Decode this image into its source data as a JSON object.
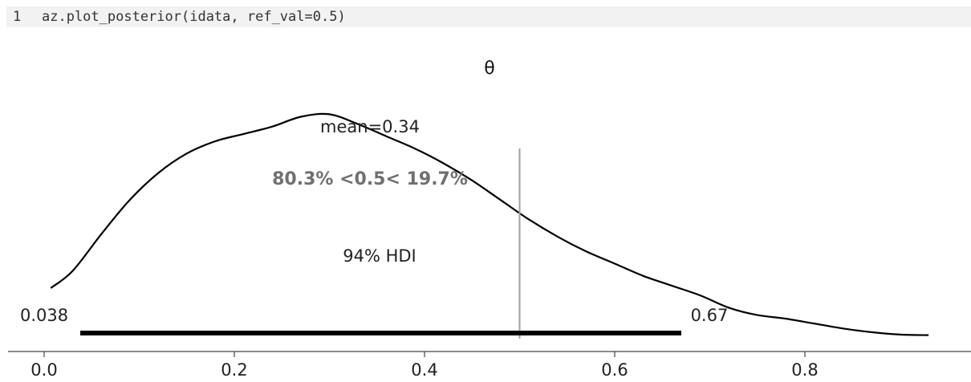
{
  "code_cell": {
    "line_number": "1",
    "code": "az.plot_posterior(idata, ref_val=0.5)"
  },
  "chart_data": {
    "type": "line",
    "title": "θ",
    "xlabel": "",
    "ylabel": "",
    "xlim": [
      -0.05,
      0.98
    ],
    "xticks": [
      0.0,
      0.2,
      0.4,
      0.6,
      0.8
    ],
    "xtick_labels": [
      "0.0",
      "0.2",
      "0.4",
      "0.6",
      "0.8"
    ],
    "grid": false,
    "density_curve": {
      "x": [
        0.007,
        0.03,
        0.06,
        0.09,
        0.12,
        0.15,
        0.18,
        0.21,
        0.24,
        0.27,
        0.3,
        0.33,
        0.36,
        0.39,
        0.42,
        0.45,
        0.48,
        0.51,
        0.54,
        0.57,
        0.6,
        0.63,
        0.66,
        0.69,
        0.72,
        0.75,
        0.78,
        0.81,
        0.84,
        0.87,
        0.9,
        0.93
      ],
      "y": [
        0.2,
        0.27,
        0.42,
        0.56,
        0.67,
        0.75,
        0.8,
        0.83,
        0.86,
        0.9,
        0.91,
        0.87,
        0.82,
        0.77,
        0.71,
        0.64,
        0.56,
        0.48,
        0.41,
        0.35,
        0.3,
        0.25,
        0.21,
        0.17,
        0.12,
        0.09,
        0.075,
        0.055,
        0.035,
        0.02,
        0.01,
        0.008
      ]
    },
    "point_estimate": {
      "label": "mean=0.34",
      "value": 0.34
    },
    "ref_val": {
      "value": 0.5,
      "label": "80.3% <0.5< 19.7%"
    },
    "hdi": {
      "label": "94% HDI",
      "low": 0.038,
      "high": 0.67,
      "low_label": "0.038",
      "high_label": "0.67"
    },
    "colors": {
      "curve": "#000000",
      "ref_line": "#a0a0a0",
      "ref_text": "#707070",
      "hdi": "#000000",
      "axis": "#444444"
    }
  }
}
